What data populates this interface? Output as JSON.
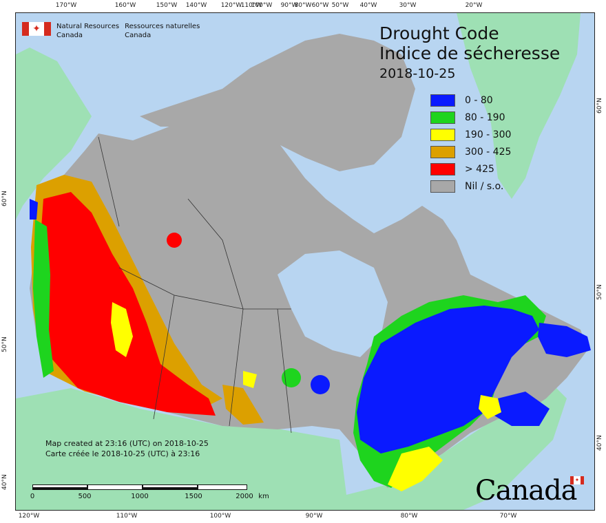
{
  "map": {
    "title_en": "Drought Code",
    "title_fr": "Indice de sécheresse",
    "date": "2018-10-25",
    "agency": {
      "en_line1": "Natural Resources",
      "en_line2": "Canada",
      "fr_line1": "Ressources naturelles",
      "fr_line2": "Canada"
    },
    "legend": [
      {
        "label": "0 - 80",
        "color": "#0a1aff"
      },
      {
        "label": "80 - 190",
        "color": "#1ed41e"
      },
      {
        "label": "190 - 300",
        "color": "#ffff00"
      },
      {
        "label": "300 - 425",
        "color": "#dca000"
      },
      {
        "label": "> 425",
        "color": "#ff0000"
      },
      {
        "label": "Nil / s.o.",
        "color": "#a8a8a8"
      }
    ],
    "credits": {
      "en": "Map created at 23:16 (UTC) on 2018-10-25",
      "fr": "Carte créée le 2018-10-25 (UTC) à 23:16"
    },
    "scale": {
      "labels": [
        "0",
        "500",
        "1000",
        "1500",
        "2000"
      ],
      "unit": "km"
    },
    "wordmark": "Canada",
    "graticule": {
      "top": [
        "170°W",
        "160°W",
        "150°W",
        "140°W",
        "120°W",
        "110°W",
        "100°W",
        "90°W",
        "80°W",
        "60°W",
        "50°W",
        "40°W",
        "30°W",
        "20°W"
      ],
      "bottom": [
        "120°W",
        "110°W",
        "100°W",
        "90°W",
        "80°W",
        "70°W"
      ],
      "left": [
        "60°N",
        "50°N",
        "40°N"
      ],
      "right": [
        "60°N",
        "50°N",
        "40°N"
      ]
    },
    "colors": {
      "water": "#b8d5f1",
      "foreign_land": "#9ee0b4",
      "no_data": "#a8a8a8"
    }
  }
}
